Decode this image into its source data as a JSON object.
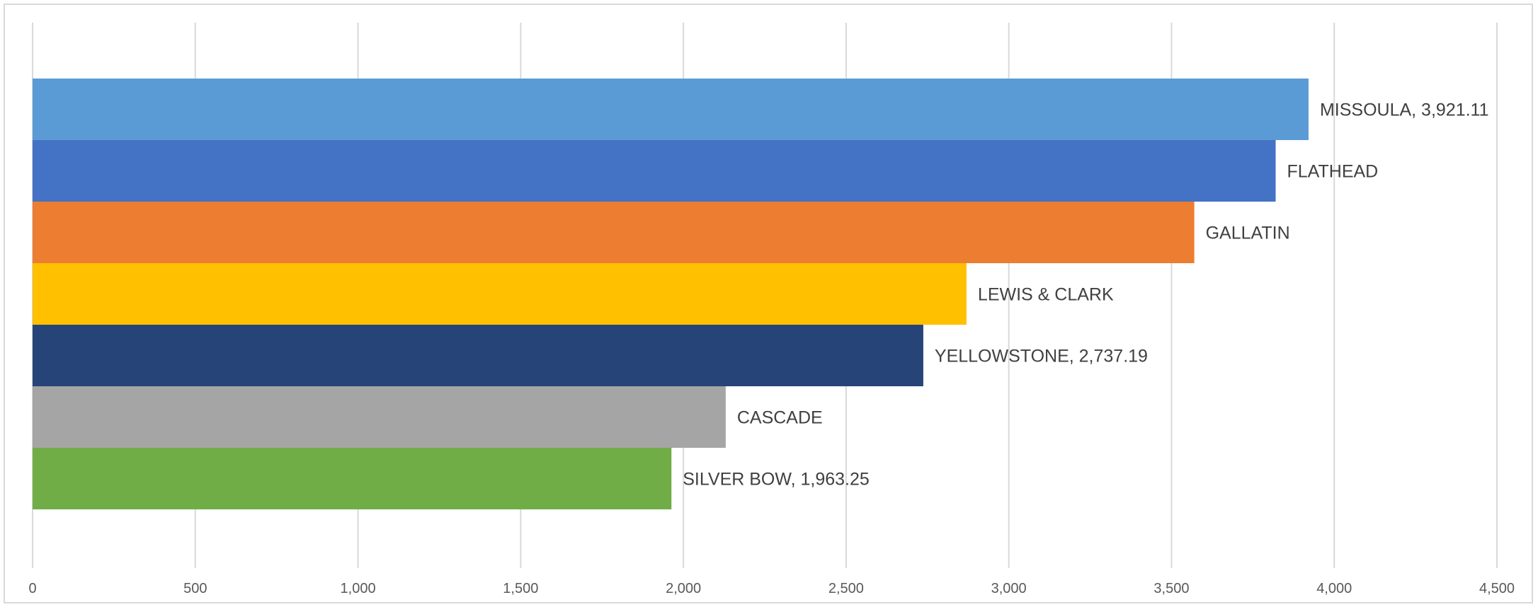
{
  "chart_data": {
    "type": "bar",
    "orientation": "horizontal",
    "title": "",
    "xlabel": "",
    "ylabel": "",
    "xlim": [
      0,
      4500
    ],
    "x_ticks": [
      0,
      500,
      1000,
      1500,
      2000,
      2500,
      3000,
      3500,
      4000,
      4500
    ],
    "x_tick_labels": [
      "0",
      "500",
      "1,000",
      "1,500",
      "2,000",
      "2,500",
      "3,000",
      "3,500",
      "4,000",
      "4,500"
    ],
    "grid": true,
    "legend": "none",
    "bars": [
      {
        "category": "MISSOULA",
        "value": 3921.11,
        "label": "MISSOULA, 3,921.11",
        "color": "#5B9BD5"
      },
      {
        "category": "FLATHEAD",
        "value": 3820,
        "label": "FLATHEAD",
        "color": "#4472C4"
      },
      {
        "category": "GALLATIN",
        "value": 3570,
        "label": "GALLATIN",
        "color": "#ED7D31"
      },
      {
        "category": "LEWIS & CLARK",
        "value": 2870,
        "label": "LEWIS & CLARK",
        "color": "#FFC000"
      },
      {
        "category": "YELLOWSTONE",
        "value": 2737.19,
        "label": "YELLOWSTONE, 2,737.19",
        "color": "#264478"
      },
      {
        "category": "CASCADE",
        "value": 2130,
        "label": "CASCADE",
        "color": "#A5A5A5"
      },
      {
        "category": "SILVER BOW",
        "value": 1963.25,
        "label": "SILVER BOW, 1,963.25",
        "color": "#70AD47"
      }
    ]
  }
}
